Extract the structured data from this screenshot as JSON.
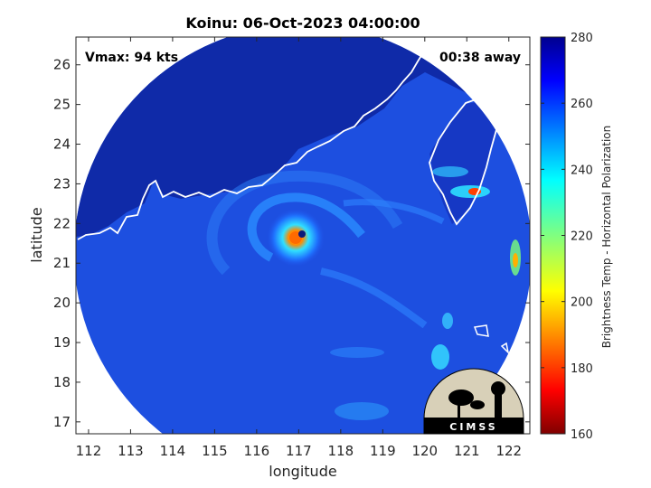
{
  "chart_data": {
    "type": "heatmap",
    "title": "Koinu: 06-Oct-2023 04:00:00",
    "xlabel": "longitude",
    "ylabel": "latitude",
    "xlim": [
      111.7,
      122.5
    ],
    "ylim": [
      16.7,
      26.7
    ],
    "x_ticks": [
      "112",
      "113",
      "114",
      "115",
      "116",
      "117",
      "118",
      "119",
      "120",
      "121",
      "122"
    ],
    "y_ticks": [
      "17",
      "18",
      "19",
      "20",
      "21",
      "22",
      "23",
      "24",
      "25",
      "26"
    ],
    "annotations": {
      "vmax": "Vmax: 94 kts",
      "time_offset": "00:38 away"
    },
    "storm_center": {
      "lon": 117.1,
      "lat": 21.6
    },
    "colorbar": {
      "label": "Brightness Temp - Horizontal Polarization",
      "min": 160,
      "max": 280,
      "ticks": [
        "160",
        "180",
        "200",
        "220",
        "240",
        "260",
        "280"
      ],
      "colormap": "jet"
    },
    "logo_text": "CIMSS",
    "grid": false
  }
}
